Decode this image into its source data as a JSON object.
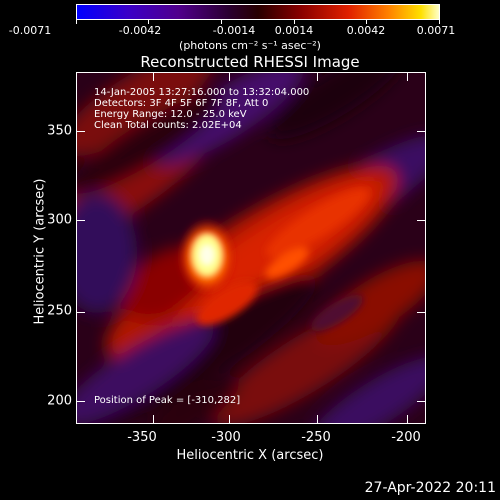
{
  "colorbar": {
    "ticks": [
      "-0.0071",
      "-0.0042",
      "-0.0014",
      "0.0014",
      "0.0042",
      "0.0071"
    ],
    "units": "(photons cm⁻² s⁻¹ asec⁻²)"
  },
  "title": "Reconstructed RHESSI Image",
  "info": {
    "time": "14-Jan-2005 13:27:16.000 to 13:32:04.000",
    "detectors": "Detectors: 3F 4F 5F 6F 7F 8F, Att 0",
    "energy": "Energy Range: 12.0 - 25.0 keV",
    "method": "Clean     Total counts: 2.02E+04",
    "peak": "Position of Peak = [-310,282]"
  },
  "axes": {
    "xlabel": "Heliocentric X (arcsec)",
    "ylabel": "Heliocentric Y (arcsec)",
    "xticks": [
      "-350",
      "-300",
      "-250",
      "-200"
    ],
    "yticks": [
      "350",
      "300",
      "250",
      "200"
    ]
  },
  "timestamp": "27-Apr-2022 20:11",
  "colors": {
    "background": "#000000",
    "text": "#ffffff"
  }
}
